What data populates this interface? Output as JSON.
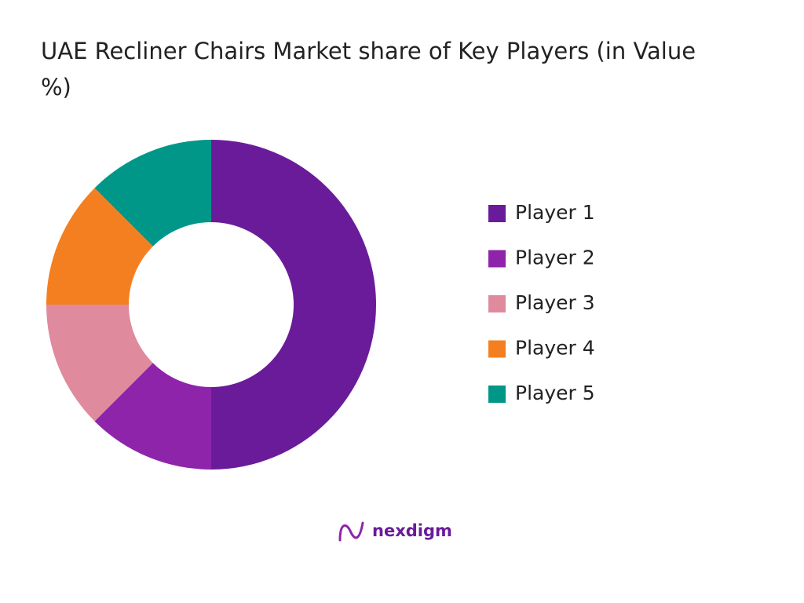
{
  "chart_data": {
    "type": "donut",
    "title": "UAE Recliner Chairs Market share of Key Players (in Value %)",
    "categories": [
      "Player 1",
      "Player 2",
      "Player 3",
      "Player 4",
      "Player 5"
    ],
    "values": [
      50,
      12.5,
      12.5,
      12.5,
      12.5
    ],
    "colors": [
      "#6a1b9a",
      "#8e24aa",
      "#e08a9e",
      "#f47f20",
      "#009688"
    ],
    "legend": "right"
  },
  "logo": "nexdigm"
}
